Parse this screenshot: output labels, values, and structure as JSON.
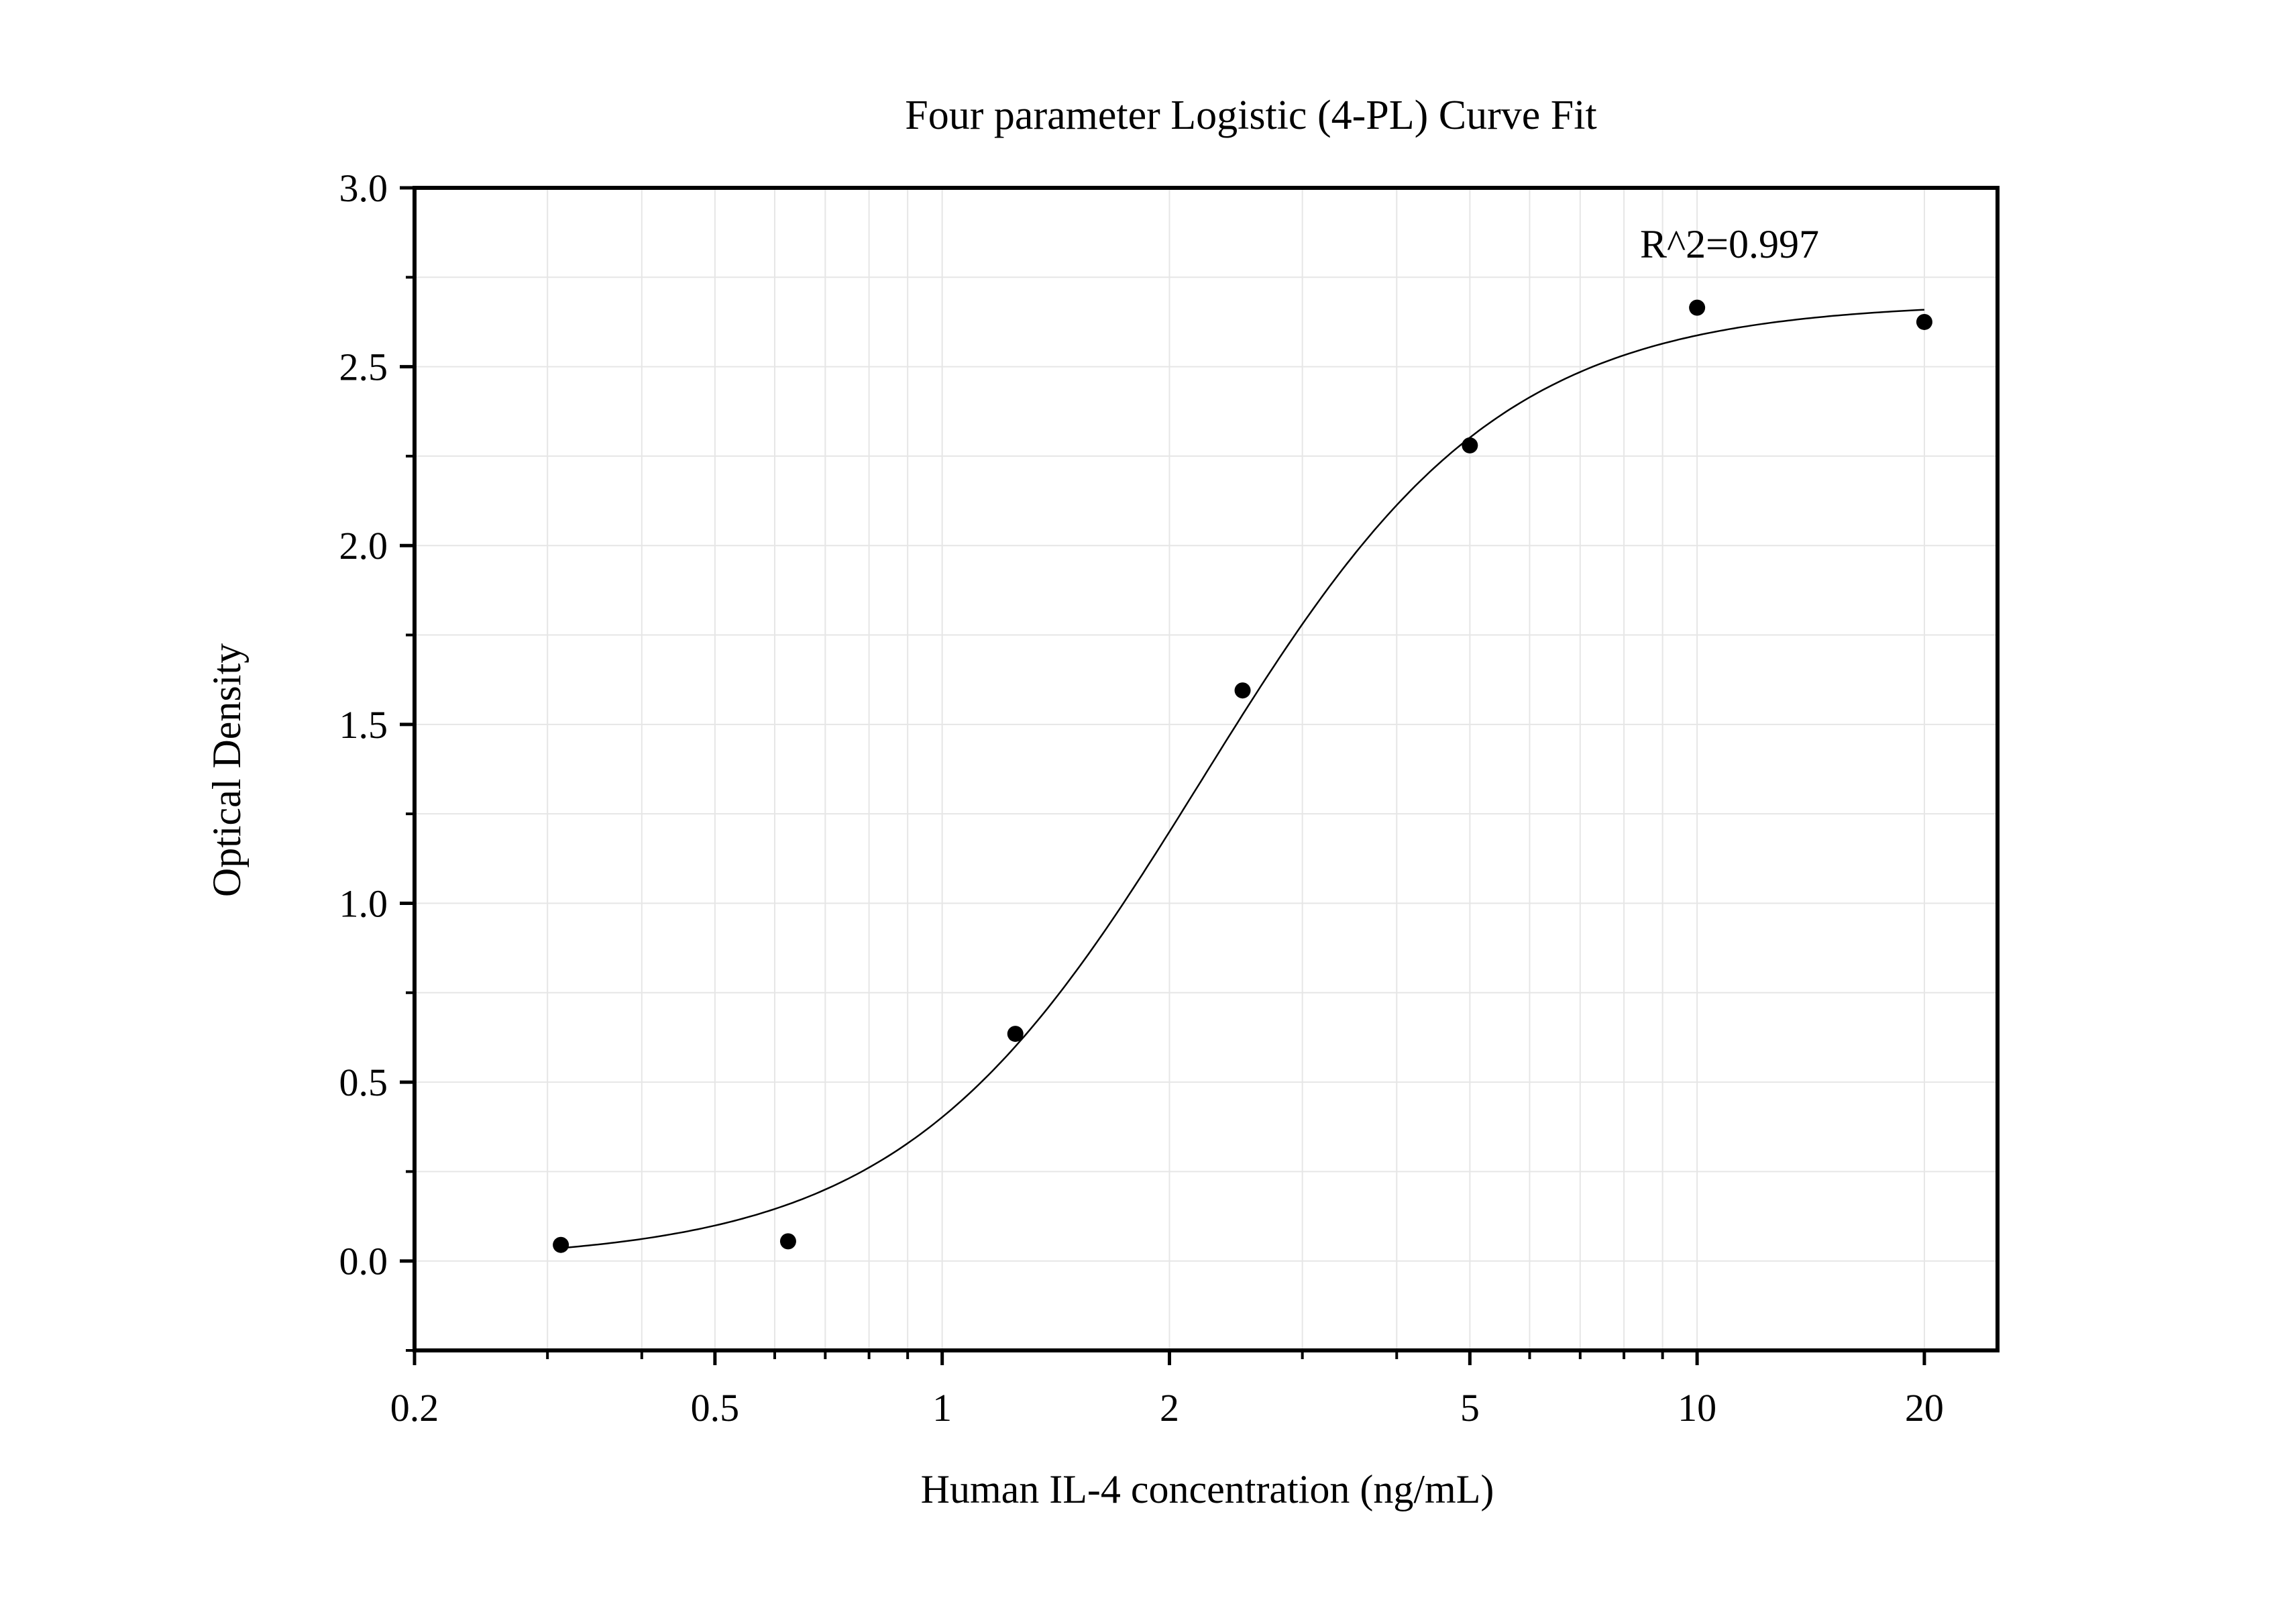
{
  "chart_data": {
    "type": "scatter",
    "title": "Four parameter Logistic (4-PL) Curve Fit",
    "xlabel": "Human IL-4 concentration (ng/mL)",
    "ylabel": "Optical Density",
    "x_scale": "log",
    "xlim": [
      0.2,
      25
    ],
    "ylim": [
      -0.25,
      3.0
    ],
    "x_ticks": [
      0.2,
      0.5,
      1,
      2,
      5,
      10,
      20
    ],
    "x_tick_labels": [
      "0.2",
      "0.5",
      "1",
      "2",
      "5",
      "10",
      "20"
    ],
    "y_ticks": [
      0.0,
      0.5,
      1.0,
      1.5,
      2.0,
      2.5,
      3.0
    ],
    "y_tick_labels": [
      "0.0",
      "0.5",
      "1.0",
      "1.5",
      "2.0",
      "2.5",
      "3.0"
    ],
    "grid": true,
    "points": {
      "x": [
        0.3125,
        0.625,
        1.25,
        2.5,
        5,
        10,
        20
      ],
      "y": [
        0.045,
        0.055,
        0.635,
        1.595,
        2.28,
        2.665,
        2.625
      ]
    },
    "fit": {
      "model": "4PL",
      "bottom": 0.0,
      "top": 2.68,
      "ec50": 2.2,
      "hill": 2.2,
      "x_range": [
        0.3125,
        20
      ]
    },
    "annotation": "R^2=0.997",
    "colors": {
      "points": "#000000",
      "curve": "#000000",
      "grid": "#e6e6e6",
      "frame": "#000000"
    }
  }
}
